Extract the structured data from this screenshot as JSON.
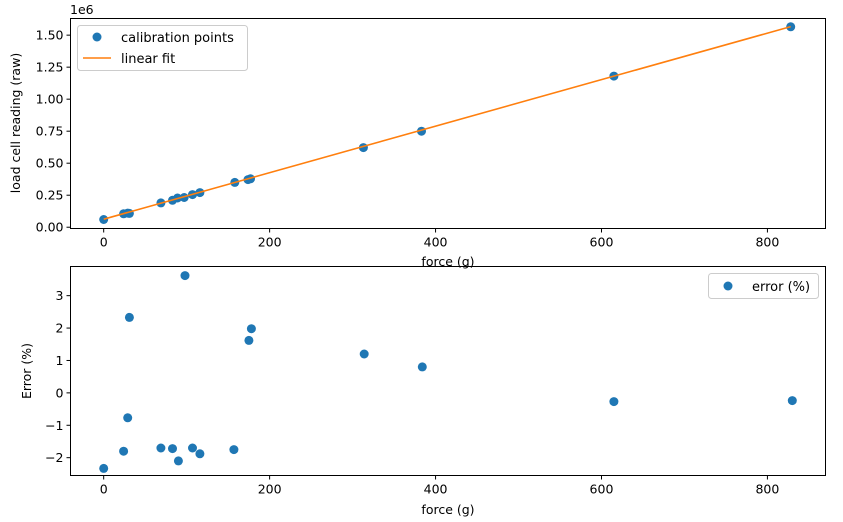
{
  "chart_data": [
    {
      "type": "scatter",
      "offset_label": "1e6",
      "xlabel": "force (g)",
      "ylabel": "load cell reading (raw)",
      "xlim": [
        -40,
        870
      ],
      "ylim": [
        -10000,
        1630000
      ],
      "xticks": [
        0,
        200,
        400,
        600,
        800
      ],
      "yticks": [
        0,
        250000,
        500000,
        750000,
        1000000,
        1250000,
        1500000
      ],
      "ytick_labels": [
        "0.00",
        "0.25",
        "0.50",
        "0.75",
        "1.00",
        "1.25",
        "1.50"
      ],
      "legend": {
        "placement": "upper-left",
        "entries": [
          "calibration points",
          "linear fit"
        ]
      },
      "grid": false,
      "series": [
        {
          "name": "calibration points",
          "kind": "scatter",
          "color": "#1f77b4",
          "points": [
            [
              0,
              60000
            ],
            [
              24,
              105000
            ],
            [
              29,
              110000
            ],
            [
              31,
              108000
            ],
            [
              69,
              190000
            ],
            [
              83,
              210000
            ],
            [
              89,
              228000
            ],
            [
              97,
              232000
            ],
            [
              107,
              255000
            ],
            [
              116,
              270000
            ],
            [
              158,
              350000
            ],
            [
              174,
              372000
            ],
            [
              177,
              378000
            ],
            [
              313,
              622000
            ],
            [
              383,
              750000
            ],
            [
              615,
              1180000
            ],
            [
              828,
              1565000
            ]
          ]
        },
        {
          "name": "linear fit",
          "kind": "line",
          "color": "#ff7f0e",
          "points": [
            [
              0,
              63000
            ],
            [
              828,
              1567000
            ]
          ]
        }
      ]
    },
    {
      "type": "scatter",
      "xlabel": "force (g)",
      "ylabel": "Error (%)",
      "xlim": [
        -40,
        870
      ],
      "ylim": [
        -2.55,
        3.9
      ],
      "xticks": [
        0,
        200,
        400,
        600,
        800
      ],
      "yticks": [
        -2,
        -1,
        0,
        1,
        2,
        3
      ],
      "ytick_labels": [
        "−2",
        "−1",
        "0",
        "1",
        "2",
        "3"
      ],
      "legend": {
        "placement": "upper-right",
        "entries": [
          "error (%)"
        ]
      },
      "grid": false,
      "series": [
        {
          "name": "error (%)",
          "kind": "scatter",
          "color": "#1f77b4",
          "points": [
            [
              0,
              -2.33
            ],
            [
              24,
              -1.8
            ],
            [
              29,
              -0.77
            ],
            [
              31,
              2.33
            ],
            [
              69,
              -1.7
            ],
            [
              83,
              -1.72
            ],
            [
              90,
              -2.1
            ],
            [
              98,
              3.62
            ],
            [
              107,
              -1.7
            ],
            [
              116,
              -1.88
            ],
            [
              157,
              -1.75
            ],
            [
              175,
              1.62
            ],
            [
              178,
              1.98
            ],
            [
              314,
              1.2
            ],
            [
              384,
              0.8
            ],
            [
              615,
              -0.27
            ],
            [
              830,
              -0.24
            ]
          ]
        }
      ]
    }
  ]
}
